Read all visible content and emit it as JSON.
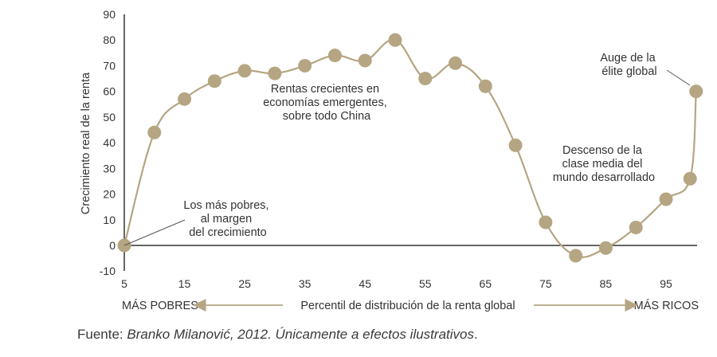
{
  "chart_data": {
    "type": "line",
    "x": [
      5,
      10,
      15,
      20,
      25,
      30,
      35,
      40,
      45,
      50,
      55,
      60,
      65,
      70,
      75,
      80,
      85,
      90,
      95,
      99,
      100
    ],
    "y": [
      0,
      44,
      57,
      64,
      68,
      67,
      70,
      74,
      72,
      80,
      65,
      71,
      62,
      39,
      9,
      -4,
      -1,
      7,
      18,
      26,
      60
    ],
    "xticks": [
      "5",
      "15",
      "25",
      "35",
      "45",
      "55",
      "65",
      "75",
      "85",
      "95"
    ],
    "xtick_values": [
      5,
      15,
      25,
      35,
      45,
      55,
      65,
      75,
      85,
      95
    ],
    "yticks": [
      "-10",
      "0",
      "10",
      "20",
      "30",
      "40",
      "50",
      "60",
      "70",
      "80",
      "90"
    ],
    "ytick_values": [
      -10,
      0,
      10,
      20,
      30,
      40,
      50,
      60,
      70,
      80,
      90
    ],
    "ylim": [
      -10,
      90
    ],
    "xlim": [
      5,
      100
    ],
    "ylabel": "Crecimiento real de la renta",
    "xlabel": "Percentil de distribución de la renta global",
    "x_left_label": "MÁS POBRES",
    "x_right_label": "MÁS RICOS",
    "grid": false,
    "colors": {
      "line": "#b5a582",
      "marker": "#b5a582",
      "axis": "#333333",
      "arrow": "#b5a582",
      "leader": "#555555"
    },
    "annotations": [
      {
        "lines": [
          "Los más pobres,",
          "al margen",
          "del crecimiento"
        ]
      },
      {
        "lines": [
          "Rentas crecientes en",
          "economías emergentes,",
          "sobre todo China"
        ]
      },
      {
        "lines": [
          "Descenso de la",
          "clase media del",
          "mundo desarrollado"
        ]
      },
      {
        "lines": [
          "Auge de la",
          "élite global"
        ]
      }
    ]
  },
  "source": {
    "prefix": "Fuente: ",
    "italic": "Branko Milanović, 2012. Únicamente a efectos ilustrativos",
    "suffix": "."
  }
}
